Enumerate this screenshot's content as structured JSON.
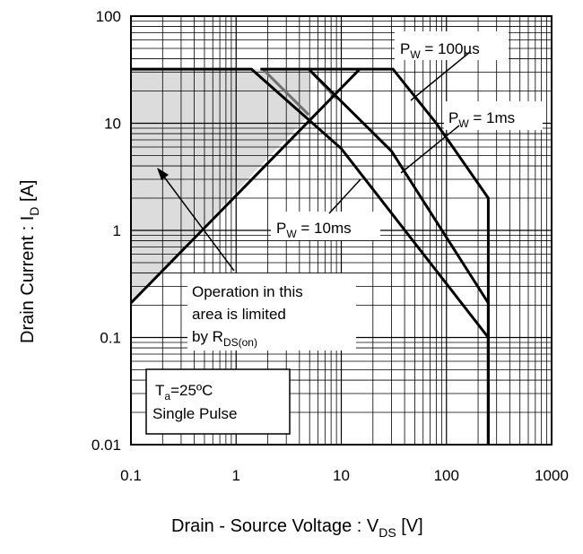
{
  "chart_data": {
    "type": "line",
    "title": "",
    "xlabel": {
      "text": "Drain - Source Voltage : V",
      "sub": "DS",
      "unit": " [V]"
    },
    "ylabel": {
      "text": "Drain Current : I",
      "sub": "D",
      "unit": " [A]"
    },
    "x_scale": "log",
    "y_scale": "log",
    "xlim": [
      0.1,
      1000
    ],
    "ylim": [
      0.01,
      100
    ],
    "x_ticks": [
      "0.1",
      "1",
      "10",
      "100",
      "1000"
    ],
    "y_ticks": [
      "0.01",
      "0.1",
      "1",
      "10",
      "100"
    ],
    "grid": true,
    "series": [
      {
        "name": "P_W = 100µs",
        "label": {
          "main": "P",
          "sub": "W",
          "rest": " = 100µs"
        },
        "points": [
          [
            1.7,
            32
          ],
          [
            31,
            32
          ],
          [
            80,
            10
          ],
          [
            250,
            2.0
          ],
          [
            250,
            0.01
          ]
        ]
      },
      {
        "name": "P_W = 1ms",
        "label": {
          "main": "P",
          "sub": "W",
          "rest": " = 1ms"
        },
        "points": [
          [
            4.9,
            32
          ],
          [
            30,
            5.5
          ],
          [
            250,
            0.21
          ],
          [
            250,
            0.01
          ]
        ]
      },
      {
        "name": "P_W = 10ms",
        "label": {
          "main": "P",
          "sub": "W",
          "rest": " = 10ms"
        },
        "points": [
          [
            0.1,
            0.21
          ],
          [
            15,
            32
          ]
        ]
      },
      {
        "name": "P_W = 10ms curve",
        "points": [
          [
            0.1,
            32
          ],
          [
            1.4,
            32
          ],
          [
            10,
            5.8
          ],
          [
            250,
            0.1
          ],
          [
            250,
            0.01
          ]
        ]
      }
    ],
    "limit_area": {
      "points": [
        [
          0.1,
          0.21
        ],
        [
          4.9,
          12
        ],
        [
          4.9,
          32
        ],
        [
          0.1,
          32
        ]
      ],
      "grey_edges": [
        [
          [
            1.8,
            32
          ],
          [
            4.9,
            12
          ]
        ],
        [
          [
            4.9,
            32
          ],
          [
            9,
            17
          ]
        ]
      ]
    },
    "annotations": {
      "operation_note": {
        "line1": "Operation in this",
        "line2": "area is limited",
        "line3": "by R",
        "line3_sub": "DS(on)"
      },
      "conditions": {
        "line1_main": "T",
        "line1_sub": "a",
        "line1_rest": "=25ºC",
        "line2": "Single Pulse"
      }
    },
    "colors": {
      "curve": "#000000",
      "limit_fill": "#dcdcdc",
      "limit_edge": "#707070",
      "grid": "#000000"
    }
  }
}
